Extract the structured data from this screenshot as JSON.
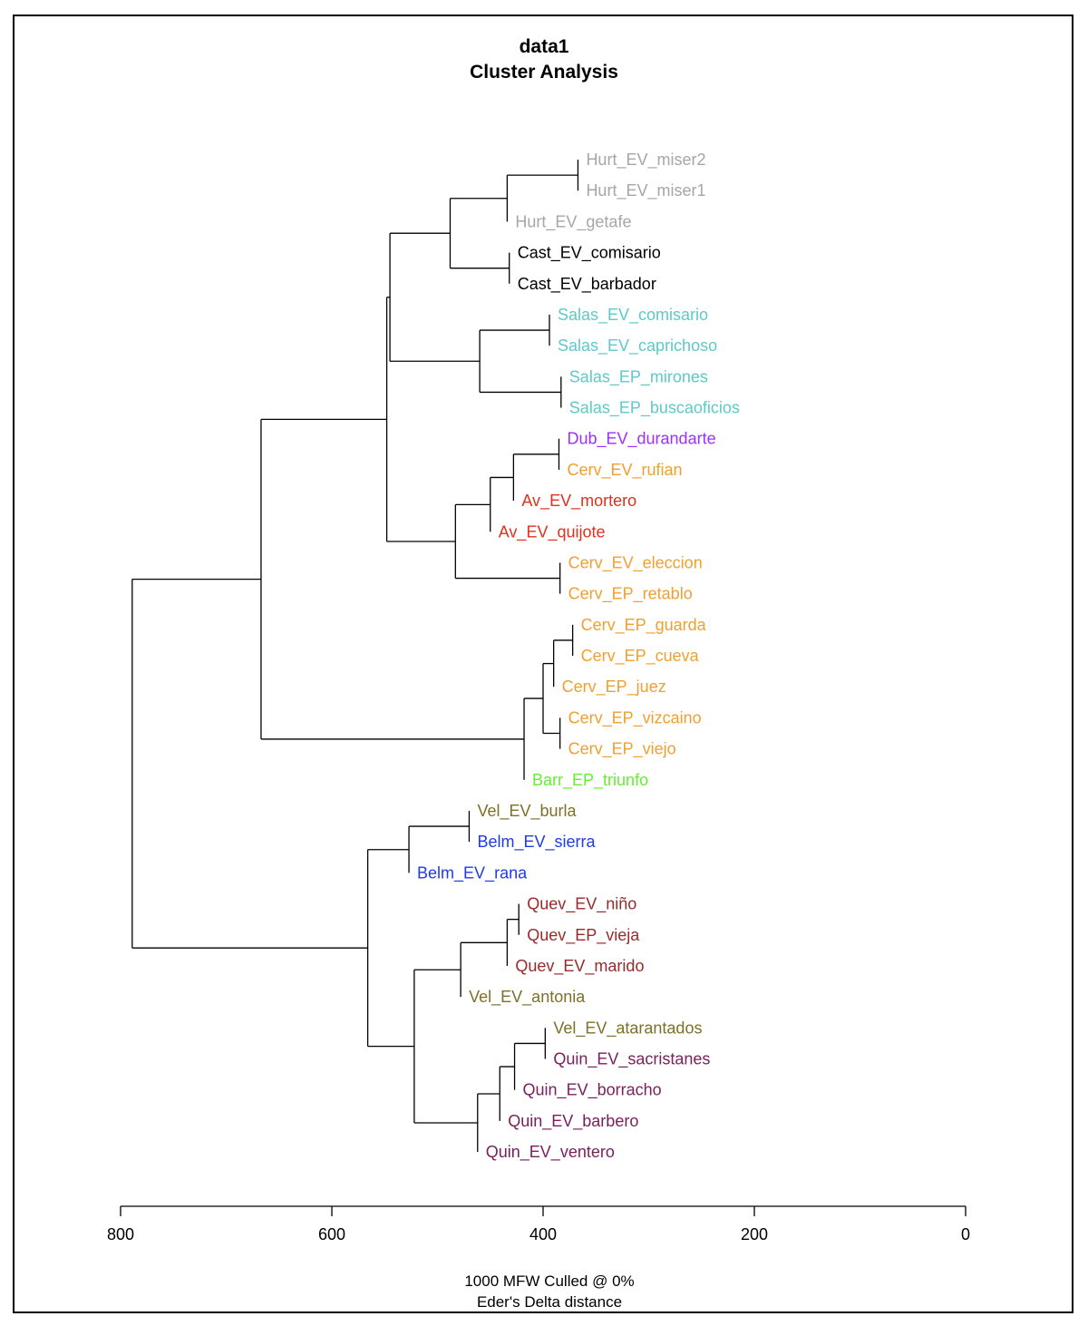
{
  "chart_data": {
    "type": "dendrogram",
    "title": "data1",
    "subtitle": "Cluster Analysis",
    "xlabel": "1000 MFW  Culled @ 0%",
    "xlabel2": "Eder's Delta distance",
    "xlim": [
      800,
      0
    ],
    "xticks": [
      800,
      600,
      400,
      200,
      0
    ],
    "leaves": [
      {
        "label": "Hurt_EV_miser2",
        "color": "#a6a6a6"
      },
      {
        "label": "Hurt_EV_miser1",
        "color": "#a6a6a6"
      },
      {
        "label": "Hurt_EV_getafe",
        "color": "#a6a6a6"
      },
      {
        "label": "Cast_EV_comisario",
        "color": "#000000"
      },
      {
        "label": "Cast_EV_barbador",
        "color": "#000000"
      },
      {
        "label": "Salas_EV_comisario",
        "color": "#5fc8c8"
      },
      {
        "label": "Salas_EV_caprichoso",
        "color": "#5fc8c8"
      },
      {
        "label": "Salas_EP_mirones",
        "color": "#5fc8c8"
      },
      {
        "label": "Salas_EP_buscaoficios",
        "color": "#5fc8c8"
      },
      {
        "label": "Dub_EV_durandarte",
        "color": "#9b30ff"
      },
      {
        "label": "Cerv_EV_rufian",
        "color": "#f0a030"
      },
      {
        "label": "Av_EV_mortero",
        "color": "#e0301e"
      },
      {
        "label": "Av_EV_quijote",
        "color": "#e0301e"
      },
      {
        "label": "Cerv_EV_eleccion",
        "color": "#f0a030"
      },
      {
        "label": "Cerv_EP_retablo",
        "color": "#f0a030"
      },
      {
        "label": "Cerv_EP_guarda",
        "color": "#f0a030"
      },
      {
        "label": "Cerv_EP_cueva",
        "color": "#f0a030"
      },
      {
        "label": "Cerv_EP_juez",
        "color": "#f0a030"
      },
      {
        "label": "Cerv_EP_vizcaino",
        "color": "#f0a030"
      },
      {
        "label": "Cerv_EP_viejo",
        "color": "#f0a030"
      },
      {
        "label": "Barr_EP_triunfo",
        "color": "#66ee33"
      },
      {
        "label": "Vel_EV_burla",
        "color": "#7d7028"
      },
      {
        "label": "Belm_EV_sierra",
        "color": "#1f3ae8"
      },
      {
        "label": "Belm_EV_rana",
        "color": "#1f3ae8"
      },
      {
        "label": "Quev_EV_niño",
        "color": "#9a2a2a"
      },
      {
        "label": "Quev_EP_vieja",
        "color": "#9a2a2a"
      },
      {
        "label": "Quev_EV_marido",
        "color": "#9a2a2a"
      },
      {
        "label": "Vel_EV_antonia",
        "color": "#7d7028"
      },
      {
        "label": "Vel_EV_atarantados",
        "color": "#7d7028"
      },
      {
        "label": "Quin_EV_sacristanes",
        "color": "#7a1f5c"
      },
      {
        "label": "Quin_EV_borracho",
        "color": "#7a1f5c"
      },
      {
        "label": "Quin_EV_barbero",
        "color": "#7a1f5c"
      },
      {
        "label": "Quin_EV_ventero",
        "color": "#7a1f5c"
      }
    ],
    "merges": [
      {
        "height": 367,
        "children": [
          0,
          1
        ]
      },
      {
        "height": 434,
        "children": [
          2,
          "m0"
        ]
      },
      {
        "height": 432,
        "children": [
          3,
          4
        ]
      },
      {
        "height": 488,
        "children": [
          "m1",
          "m2"
        ]
      },
      {
        "height": 394,
        "children": [
          5,
          6
        ]
      },
      {
        "height": 383,
        "children": [
          7,
          8
        ]
      },
      {
        "height": 460,
        "children": [
          "m4",
          "m5"
        ]
      },
      {
        "height": 545,
        "children": [
          "m3",
          "m6"
        ]
      },
      {
        "height": 385,
        "children": [
          9,
          10
        ]
      },
      {
        "height": 428,
        "children": [
          11,
          "m8"
        ]
      },
      {
        "height": 450,
        "children": [
          12,
          "m9"
        ]
      },
      {
        "height": 384,
        "children": [
          13,
          14
        ]
      },
      {
        "height": 483,
        "children": [
          "m10",
          "m11"
        ]
      },
      {
        "height": 548,
        "children": [
          "m7",
          "m12"
        ]
      },
      {
        "height": 372,
        "children": [
          15,
          16
        ]
      },
      {
        "height": 390,
        "children": [
          17,
          "m14"
        ]
      },
      {
        "height": 384,
        "children": [
          18,
          19
        ]
      },
      {
        "height": 400,
        "children": [
          "m15",
          "m16"
        ]
      },
      {
        "height": 418,
        "children": [
          20,
          "m17"
        ]
      },
      {
        "height": 667,
        "children": [
          "m13",
          "m18"
        ]
      },
      {
        "height": 470,
        "children": [
          21,
          22
        ]
      },
      {
        "height": 527,
        "children": [
          23,
          "m20"
        ]
      },
      {
        "height": 423,
        "children": [
          24,
          25
        ]
      },
      {
        "height": 434,
        "children": [
          26,
          "m22"
        ]
      },
      {
        "height": 478,
        "children": [
          27,
          "m23"
        ]
      },
      {
        "height": 398,
        "children": [
          28,
          29
        ]
      },
      {
        "height": 427,
        "children": [
          30,
          "m25"
        ]
      },
      {
        "height": 441,
        "children": [
          31,
          "m26"
        ]
      },
      {
        "height": 462,
        "children": [
          32,
          "m27"
        ]
      },
      {
        "height": 522,
        "children": [
          "m24",
          "m28"
        ]
      },
      {
        "height": 566,
        "children": [
          "m21",
          "m29"
        ]
      },
      {
        "height": 789,
        "children": [
          "m19",
          "m30"
        ]
      }
    ]
  }
}
